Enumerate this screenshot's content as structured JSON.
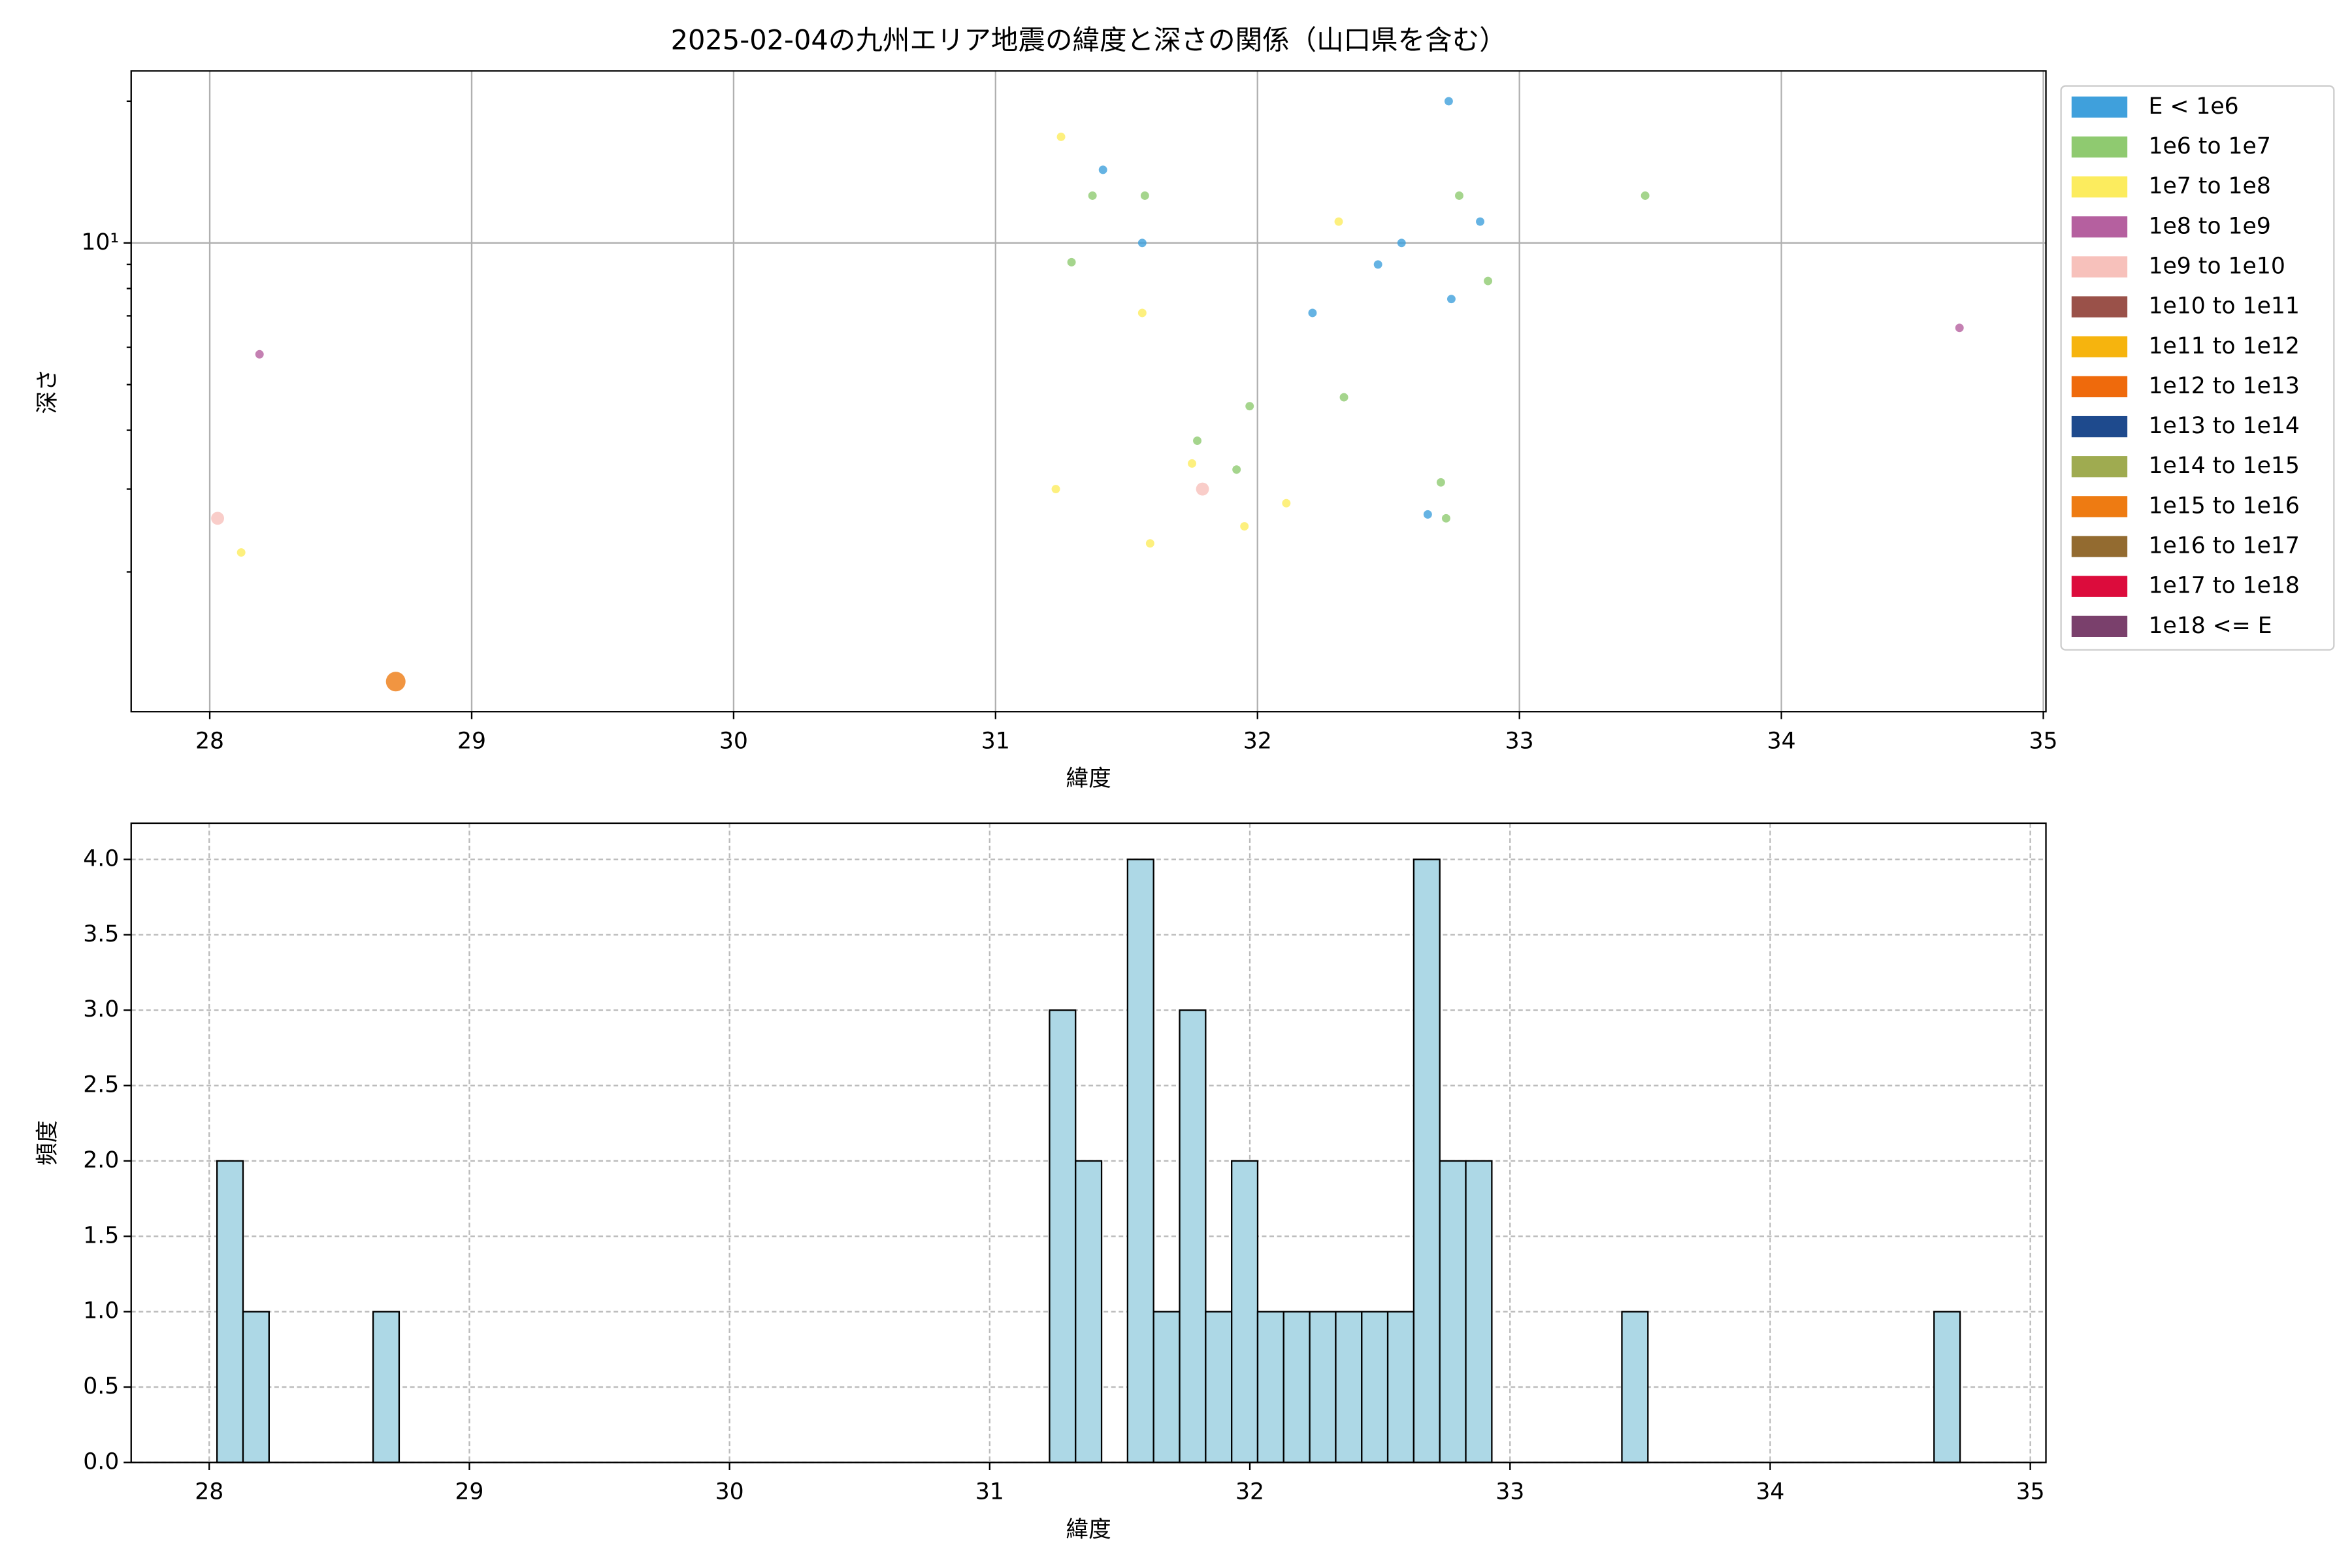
{
  "chart_data": [
    {
      "type": "scatter",
      "title": "2025-02-04の九州エリア地震の緯度と深さの関係（山口県を含む）",
      "xlabel": "緯度",
      "ylabel": "深さ",
      "xlim": [
        27.7,
        35.01
      ],
      "xticks": [
        28,
        29,
        30,
        31,
        32,
        33,
        34,
        35
      ],
      "ylim": [
        1.01,
        23.2
      ],
      "yscale": "log",
      "yticks": [
        {
          "value": 10,
          "label": "10¹"
        }
      ],
      "yminorticks": [
        2,
        3,
        4,
        5,
        6,
        7,
        8,
        9,
        20
      ],
      "grid": "solid",
      "legend": "outside-right",
      "series": [
        {
          "name": "E < 1e6",
          "color": "#3fa0dc",
          "x": [
            32.73,
            31.41,
            31.56,
            32.85,
            32.55,
            32.46,
            32.74,
            32.21,
            32.65
          ],
          "values": [
            20.0,
            14.3,
            10,
            11.1,
            10,
            9.0,
            7.6,
            7.1,
            2.65
          ]
        },
        {
          "name": "1e6 to 1e7",
          "color": "#8fca70",
          "x": [
            31.37,
            31.57,
            32.77,
            33.48,
            31.29,
            32.88,
            31.97,
            32.33,
            31.77,
            31.92,
            32.7,
            32.72
          ],
          "values": [
            12.6,
            12.6,
            12.6,
            12.6,
            9.1,
            8.3,
            4.5,
            4.7,
            3.8,
            3.3,
            3.1,
            2.6
          ]
        },
        {
          "name": "1e7 to 1e8",
          "color": "#fcec5e",
          "x": [
            31.25,
            32.31,
            31.56,
            31.75,
            31.23,
            32.11,
            31.95,
            31.59,
            28.12
          ],
          "values": [
            16.8,
            11.1,
            7.1,
            3.4,
            3.0,
            2.8,
            2.5,
            2.3,
            2.2
          ]
        },
        {
          "name": "1e8 to 1e9",
          "color": "#b5609f",
          "x": [
            28.19,
            34.68
          ],
          "values": [
            5.8,
            6.6
          ]
        },
        {
          "name": "1e9 to 1e10",
          "color": "#f7c1bb",
          "x": [
            28.03,
            31.79
          ],
          "values": [
            2.6,
            3.0
          ]
        },
        {
          "name": "1e10 to 1e11",
          "color": "#9a5149",
          "x": [],
          "values": []
        },
        {
          "name": "1e11 to 1e12",
          "color": "#f6b40e",
          "x": [],
          "values": []
        },
        {
          "name": "1e12 to 1e13",
          "color": "#ef6a0c",
          "x": [],
          "values": []
        },
        {
          "name": "1e13 to 1e14",
          "color": "#1e4a8d",
          "x": [],
          "values": []
        },
        {
          "name": "1e14 to 1e15",
          "color": "#9fab50",
          "x": [],
          "values": []
        },
        {
          "name": "1e15 to 1e16",
          "color": "#ee7b12",
          "x": [
            28.71
          ],
          "values": [
            1.17
          ]
        },
        {
          "name": "1e16 to 1e17",
          "color": "#936b30",
          "x": [],
          "values": []
        },
        {
          "name": "1e17 to 1e18",
          "color": "#dc0c3c",
          "x": [],
          "values": []
        },
        {
          "name": "1e18 <= E",
          "color": "#7a406c",
          "x": [],
          "values": []
        }
      ]
    },
    {
      "type": "histogram",
      "xlabel": "緯度",
      "ylabel": "頻度",
      "xlim": [
        27.7,
        35.06
      ],
      "xticks": [
        28,
        29,
        30,
        31,
        32,
        33,
        34,
        35
      ],
      "ylim": [
        0,
        4.24
      ],
      "yticks": [
        {
          "value": 0,
          "label": "0.0"
        },
        0.5,
        {
          "value": 1,
          "label": "1.0"
        },
        1.5,
        {
          "value": 2,
          "label": "2.0"
        },
        2.5,
        {
          "value": 3,
          "label": "3.0"
        },
        3.5,
        {
          "value": 4,
          "label": "4.0"
        }
      ],
      "grid": "dashed",
      "color": "#add8e6",
      "bins": [
        28.03,
        28.13,
        28.23,
        28.33,
        28.43,
        28.53,
        28.63,
        28.73,
        28.83,
        28.93,
        29.03,
        29.13,
        29.23,
        29.33,
        29.43,
        29.53,
        29.63,
        29.73,
        29.83,
        29.93,
        30.03,
        30.13,
        30.23,
        30.33,
        30.43,
        30.53,
        30.63,
        30.73,
        30.83,
        30.93,
        31.03,
        31.13,
        31.23,
        31.33,
        31.43,
        31.53,
        31.63,
        31.73,
        31.83,
        31.93,
        32.03,
        32.13,
        32.23,
        32.33,
        32.43,
        32.53,
        32.63,
        32.73,
        32.83,
        32.93,
        33.03,
        33.13,
        33.23,
        33.33,
        33.43,
        33.53,
        33.63,
        33.73,
        33.83,
        33.93,
        34.03,
        34.13,
        34.23,
        34.33,
        34.43,
        34.53,
        34.63,
        34.73
      ],
      "counts": [
        2,
        1,
        0,
        0,
        0,
        0,
        1,
        0,
        0,
        0,
        0,
        0,
        0,
        0,
        0,
        0,
        0,
        0,
        0,
        0,
        0,
        0,
        0,
        0,
        0,
        0,
        0,
        0,
        0,
        0,
        0,
        0,
        3,
        2,
        0,
        4,
        1,
        3,
        1,
        2,
        1,
        1,
        1,
        1,
        1,
        1,
        4,
        2,
        2,
        0,
        0,
        0,
        0,
        0,
        1,
        0,
        0,
        0,
        0,
        0,
        0,
        0,
        0,
        0,
        0,
        0,
        1
      ]
    }
  ]
}
